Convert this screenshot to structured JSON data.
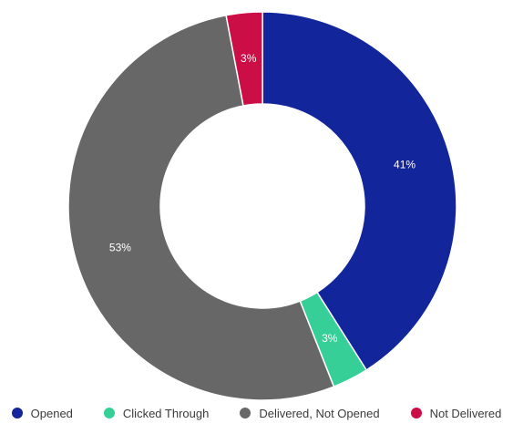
{
  "chart_data": {
    "type": "pie",
    "variant": "donut",
    "title": "",
    "categories": [
      "Opened",
      "Clicked Through",
      "Delivered, Not Opened",
      "Not Delivered"
    ],
    "values": [
      41,
      3,
      53,
      3
    ],
    "value_labels": [
      "41%",
      "3%",
      "53%",
      "3%"
    ],
    "colors": [
      "#13259b",
      "#35cf97",
      "#676767",
      "#cc0e46"
    ],
    "legend_position": "bottom-center",
    "start_angle_deg": 0,
    "direction": "clockwise"
  },
  "legend": {
    "items": [
      {
        "label": "Opened",
        "color": "#13259b"
      },
      {
        "label": "Clicked Through",
        "color": "#35cf97"
      },
      {
        "label": "Delivered, Not Opened",
        "color": "#676767"
      },
      {
        "label": "Not Delivered",
        "color": "#cc0e46"
      }
    ]
  }
}
